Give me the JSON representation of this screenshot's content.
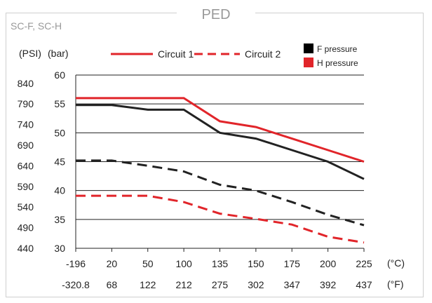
{
  "page": {
    "header": "PED",
    "model": "SC-F, SC-H"
  },
  "chart_data": {
    "type": "line",
    "title": "PED",
    "subtitle": "SC-F, SC-H",
    "axis_unit_psi": "(PSI)",
    "axis_unit_bar": "(bar)",
    "unit_c": "(°C)",
    "unit_f": "(°F)",
    "x_labels_c": [
      "-196",
      "20",
      "50",
      "100",
      "135",
      "150",
      "175",
      "200",
      "225"
    ],
    "x_labels_f": [
      "-320.8",
      "68",
      "122",
      "212",
      "275",
      "302",
      "347",
      "392",
      "437"
    ],
    "y_ticks_bar": [
      "60",
      "55",
      "50",
      "45",
      "40",
      "35",
      "30"
    ],
    "y_ticks_psi": [
      "840",
      "790",
      "740",
      "690",
      "640",
      "590",
      "540",
      "490",
      "440"
    ],
    "ylim_bar": [
      30,
      60
    ],
    "ylim_psi": [
      440,
      860
    ],
    "grid": "horizontal",
    "legend": {
      "line_items": [
        {
          "label": "Circuit 1",
          "style": "solid",
          "color": "#e1252a"
        },
        {
          "label": "Circuit 2",
          "style": "dashed",
          "color": "#e1252a"
        }
      ],
      "color_items": [
        {
          "label": "F pressure",
          "color": "#000000"
        },
        {
          "label": "H pressure",
          "color": "#e1252a"
        }
      ]
    },
    "series": [
      {
        "circuit": "Circuit 1",
        "pressure": "H pressure",
        "color": "#e1252a",
        "dash": false,
        "values": [
          56,
          56,
          56,
          56,
          52,
          51,
          49,
          47,
          45
        ]
      },
      {
        "circuit": "Circuit 1",
        "pressure": "F pressure",
        "color": "#222222",
        "dash": false,
        "values": [
          54.8,
          54.8,
          54,
          54,
          50,
          49,
          47,
          45,
          42
        ]
      },
      {
        "circuit": "Circuit 2",
        "pressure": "F pressure",
        "color": "#222222",
        "dash": true,
        "values": [
          45.2,
          45.2,
          44.3,
          43.3,
          41,
          40,
          38,
          35.8,
          34
        ]
      },
      {
        "circuit": "Circuit 2",
        "pressure": "H pressure",
        "color": "#e1252a",
        "dash": true,
        "values": [
          39.1,
          39.1,
          39.1,
          38,
          36,
          35.1,
          34.1,
          32,
          31
        ]
      }
    ]
  }
}
